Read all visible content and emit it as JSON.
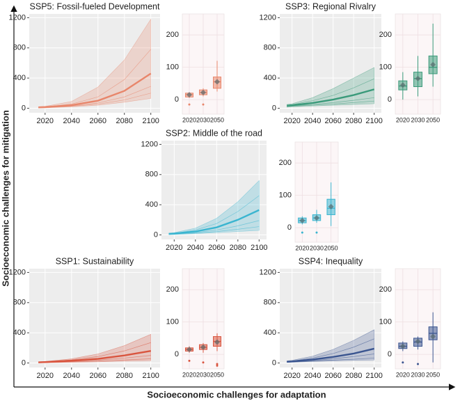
{
  "xlabel": "Socioeconomic challenges for adaptation",
  "ylabel": "Socioeconomic challenges for mitigation",
  "chart_data": [
    {
      "type": "line",
      "title": "SSP5: Fossil-fueled Development",
      "color": "#e8866b",
      "x": [
        2015,
        2020,
        2040,
        2060,
        2080,
        2100
      ],
      "median": [
        12,
        15,
        40,
        100,
        230,
        460
      ],
      "lower": [
        3,
        5,
        20,
        40,
        80,
        130
      ],
      "upper": [
        20,
        25,
        90,
        280,
        640,
        1180
      ],
      "members": [
        [
          10,
          12,
          30,
          70,
          150,
          290
        ],
        [
          14,
          18,
          55,
          150,
          380,
          780
        ],
        [
          6,
          8,
          25,
          55,
          110,
          200
        ]
      ],
      "xlim": [
        2008,
        2107
      ],
      "xticks": [
        2020,
        2040,
        2060,
        2080,
        2100
      ],
      "ylim": [
        -60,
        1250
      ],
      "yticks": [
        0,
        400,
        800,
        1200
      ],
      "grid": true
    },
    {
      "type": "box",
      "color": "#e8866b",
      "categories": [
        "2020",
        "2030",
        "2050"
      ],
      "boxes": [
        {
          "min": 5,
          "q1": 8,
          "median": 15,
          "q3": 20,
          "max": 22,
          "mean": 15,
          "outliers": [
            -15
          ]
        },
        {
          "min": 10,
          "q1": 15,
          "median": 22,
          "q3": 30,
          "max": 35,
          "mean": 22,
          "outliers": [
            -15
          ]
        },
        {
          "min": 25,
          "q1": 35,
          "median": 55,
          "q3": 70,
          "max": 120,
          "mean": 55,
          "outliers": []
        }
      ],
      "ylim": [
        -45,
        265
      ],
      "yticks": [
        0,
        100,
        200
      ],
      "grid": true
    },
    {
      "type": "line",
      "title": "SSP3: Regional Rivalry",
      "color": "#3a9a7a",
      "x": [
        2015,
        2020,
        2040,
        2060,
        2080,
        2100
      ],
      "median": [
        35,
        40,
        70,
        115,
        175,
        250
      ],
      "lower": [
        15,
        20,
        30,
        40,
        50,
        60
      ],
      "upper": [
        50,
        60,
        140,
        260,
        400,
        540
      ],
      "members": [
        [
          28,
          32,
          50,
          75,
          105,
          140
        ],
        [
          42,
          48,
          100,
          170,
          270,
          390
        ],
        [
          20,
          25,
          40,
          55,
          75,
          95
        ]
      ],
      "xlim": [
        2008,
        2107
      ],
      "xticks": [
        2020,
        2040,
        2060,
        2080,
        2100
      ],
      "ylim": [
        -60,
        1250
      ],
      "yticks": [
        0,
        400,
        800,
        1200
      ],
      "grid": true
    },
    {
      "type": "box",
      "color": "#3a9a7a",
      "categories": [
        "2020",
        "2030",
        "2050"
      ],
      "boxes": [
        {
          "min": 0,
          "q1": 30,
          "median": 42,
          "q3": 58,
          "max": 85,
          "mean": 45,
          "outliers": []
        },
        {
          "min": 10,
          "q1": 40,
          "median": 65,
          "q3": 85,
          "max": 135,
          "mean": 65,
          "outliers": []
        },
        {
          "min": 40,
          "q1": 80,
          "median": 100,
          "q3": 135,
          "max": 235,
          "mean": 108,
          "outliers": []
        }
      ],
      "ylim": [
        -45,
        265
      ],
      "yticks": [
        0,
        100,
        200
      ],
      "grid": true
    },
    {
      "type": "line",
      "title": "SSP2: Middle of the road",
      "color": "#3ab5d0",
      "x": [
        2015,
        2020,
        2040,
        2060,
        2080,
        2100
      ],
      "median": [
        14,
        18,
        45,
        100,
        200,
        330
      ],
      "lower": [
        3,
        5,
        18,
        30,
        45,
        60
      ],
      "upper": [
        24,
        30,
        90,
        220,
        440,
        720
      ],
      "members": [
        [
          10,
          13,
          32,
          65,
          120,
          190
        ],
        [
          18,
          22,
          65,
          150,
          310,
          520
        ],
        [
          6,
          9,
          24,
          45,
          75,
          110
        ]
      ],
      "xlim": [
        2008,
        2107
      ],
      "xticks": [
        2020,
        2040,
        2060,
        2080,
        2100
      ],
      "ylim": [
        -60,
        1250
      ],
      "yticks": [
        0,
        400,
        800,
        1200
      ],
      "grid": true
    },
    {
      "type": "box",
      "color": "#3ab5d0",
      "categories": [
        "2020",
        "2030",
        "2050"
      ],
      "boxes": [
        {
          "min": 10,
          "q1": 15,
          "median": 22,
          "q3": 30,
          "max": 35,
          "mean": 22,
          "outliers": [
            -15
          ]
        },
        {
          "min": 15,
          "q1": 22,
          "median": 30,
          "q3": 40,
          "max": 55,
          "mean": 30,
          "outliers": [
            -15
          ]
        },
        {
          "min": 5,
          "q1": 40,
          "median": 60,
          "q3": 88,
          "max": 140,
          "mean": 65,
          "outliers": []
        }
      ],
      "ylim": [
        -45,
        265
      ],
      "yticks": [
        0,
        100,
        200
      ],
      "grid": true
    },
    {
      "type": "line",
      "title": "SSP1: Sustainability",
      "color": "#d9553f",
      "x": [
        2015,
        2020,
        2040,
        2060,
        2080,
        2100
      ],
      "median": [
        9,
        12,
        30,
        55,
        100,
        160
      ],
      "lower": [
        2,
        3,
        10,
        15,
        25,
        30
      ],
      "upper": [
        16,
        20,
        55,
        120,
        230,
        380
      ],
      "members": [
        [
          7,
          9,
          20,
          38,
          65,
          100
        ],
        [
          12,
          16,
          42,
          85,
          160,
          270
        ],
        [
          4,
          6,
          15,
          25,
          40,
          55
        ]
      ],
      "xlim": [
        2008,
        2107
      ],
      "xticks": [
        2020,
        2040,
        2060,
        2080,
        2100
      ],
      "ylim": [
        -60,
        1250
      ],
      "yticks": [
        0,
        400,
        800,
        1200
      ],
      "grid": true
    },
    {
      "type": "box",
      "color": "#d9553f",
      "categories": [
        "2020",
        "2030",
        "2050"
      ],
      "boxes": [
        {
          "min": 5,
          "q1": 10,
          "median": 15,
          "q3": 20,
          "max": 25,
          "mean": 15,
          "outliers": [
            -20
          ]
        },
        {
          "min": 5,
          "q1": 15,
          "median": 22,
          "q3": 30,
          "max": 35,
          "mean": 22,
          "outliers": [
            -25
          ]
        },
        {
          "min": 10,
          "q1": 25,
          "median": 40,
          "q3": 55,
          "max": 65,
          "mean": 38,
          "outliers": [
            -30,
            -35
          ]
        }
      ],
      "ylim": [
        -45,
        265
      ],
      "yticks": [
        0,
        100,
        200
      ],
      "grid": true
    },
    {
      "type": "line",
      "title": "SSP4: Inequality",
      "color": "#3a5590",
      "x": [
        2015,
        2020,
        2040,
        2060,
        2080,
        2100
      ],
      "median": [
        16,
        20,
        45,
        80,
        125,
        190
      ],
      "lower": [
        7,
        10,
        20,
        28,
        35,
        40
      ],
      "upper": [
        28,
        35,
        90,
        180,
        300,
        440
      ],
      "members": [
        [
          12,
          15,
          32,
          55,
          85,
          120
        ],
        [
          20,
          26,
          65,
          125,
          210,
          320
        ],
        [
          9,
          12,
          25,
          38,
          50,
          65
        ]
      ],
      "xlim": [
        2008,
        2107
      ],
      "xticks": [
        2020,
        2040,
        2060,
        2080,
        2100
      ],
      "ylim": [
        -60,
        1250
      ],
      "yticks": [
        0,
        400,
        800,
        1200
      ],
      "grid": true
    },
    {
      "type": "box",
      "color": "#3a5590",
      "categories": [
        "2020",
        "2030",
        "2050"
      ],
      "boxes": [
        {
          "min": 10,
          "q1": 18,
          "median": 25,
          "q3": 35,
          "max": 40,
          "mean": 25,
          "outliers": [
            -25
          ]
        },
        {
          "min": 15,
          "q1": 25,
          "median": 38,
          "q3": 50,
          "max": 55,
          "mean": 40,
          "outliers": [
            -30
          ]
        },
        {
          "min": -25,
          "q1": 45,
          "median": 65,
          "q3": 85,
          "max": 130,
          "mean": 55,
          "outliers": []
        }
      ],
      "ylim": [
        -45,
        265
      ],
      "yticks": [
        0,
        100,
        200
      ],
      "grid": true
    }
  ]
}
